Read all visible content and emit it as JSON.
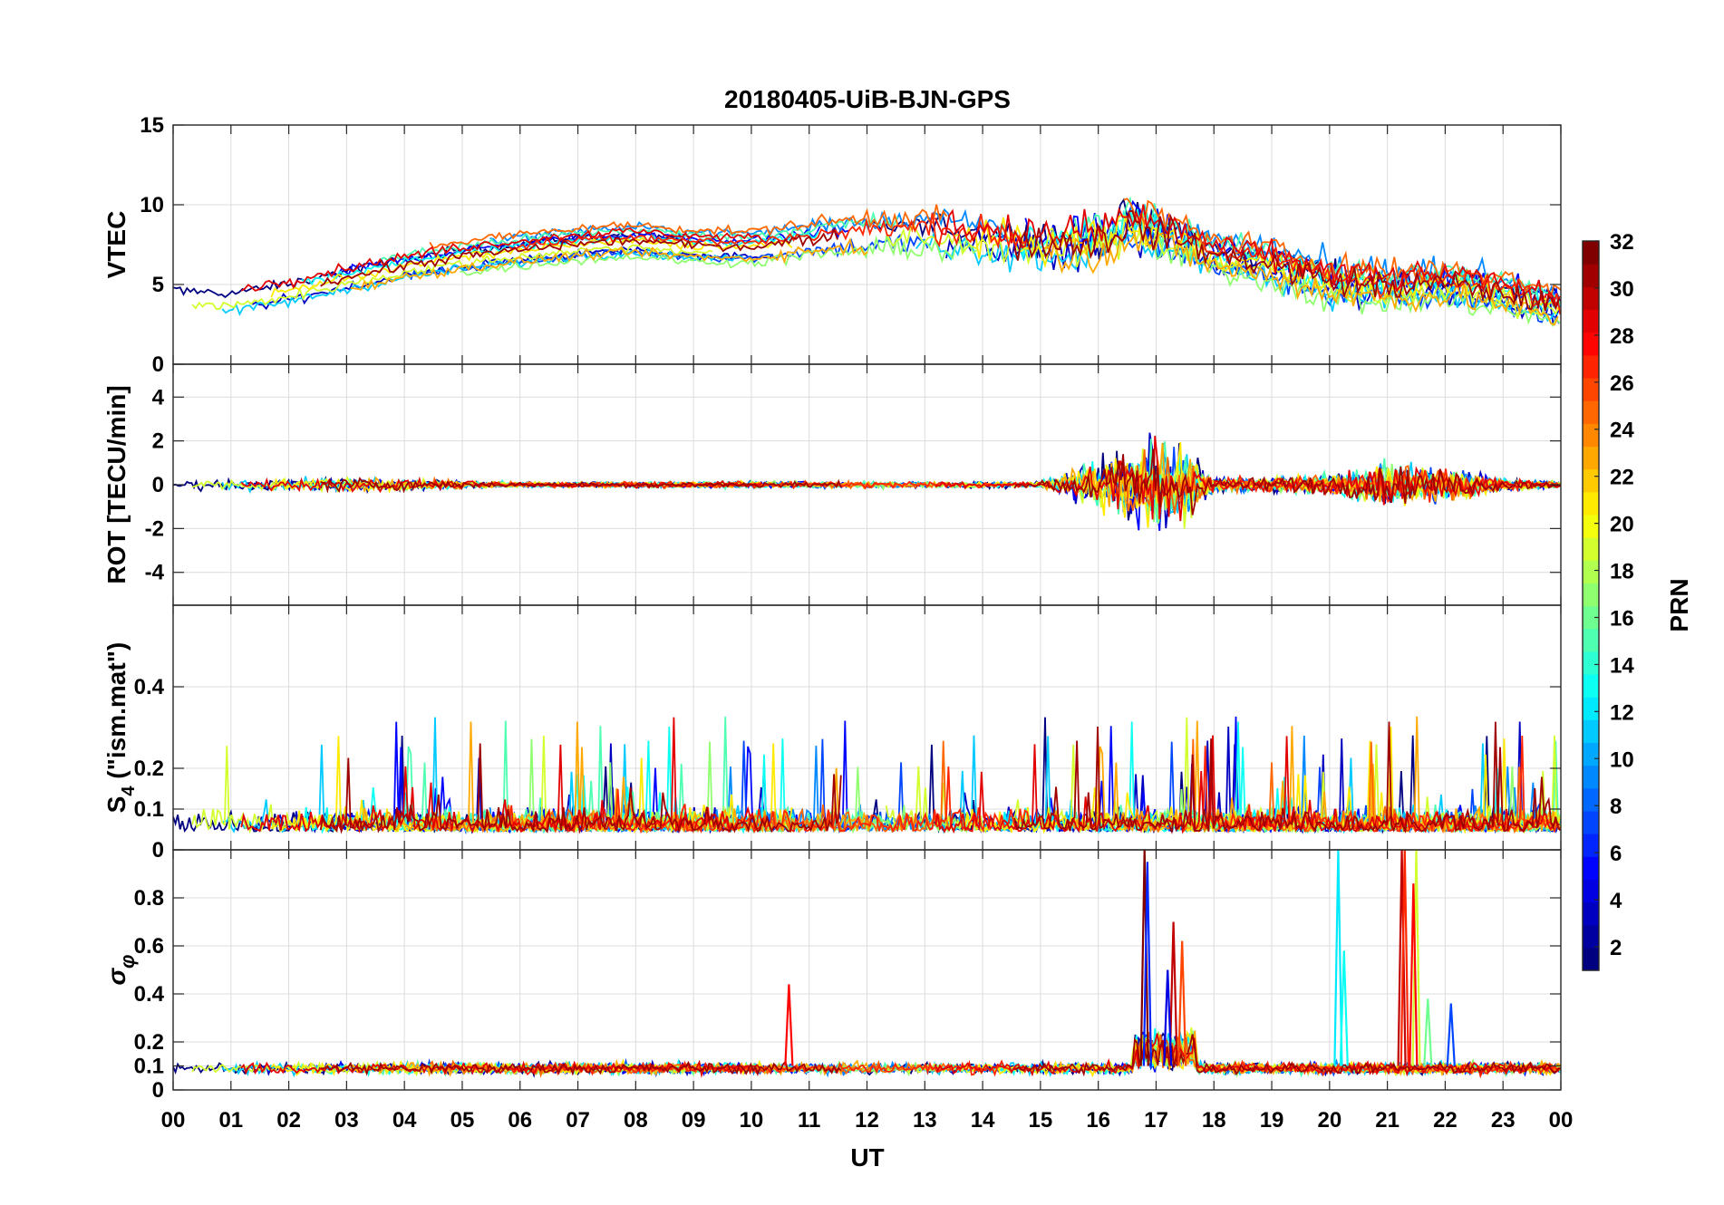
{
  "chart_data": {
    "type": "line",
    "title": "20180405-UiB-BJN-GPS",
    "xlabel": "UT",
    "x_ticks": [
      "00",
      "01",
      "02",
      "03",
      "04",
      "05",
      "06",
      "07",
      "08",
      "09",
      "10",
      "11",
      "12",
      "13",
      "14",
      "15",
      "16",
      "17",
      "18",
      "19",
      "20",
      "21",
      "22",
      "23",
      "00"
    ],
    "xlim": [
      0,
      24
    ],
    "panels": [
      {
        "name": "vtec",
        "ylabel": "VTEC",
        "ylim": [
          0,
          15
        ],
        "y_ticks": [
          {
            "v": 0,
            "label": "0"
          },
          {
            "v": 5,
            "label": "5"
          },
          {
            "v": 10,
            "label": "10"
          },
          {
            "v": 15,
            "label": "15"
          }
        ],
        "trend": [
          [
            0,
            4.3
          ],
          [
            1,
            4.1
          ],
          [
            2,
            4.7
          ],
          [
            3,
            5.5
          ],
          [
            4,
            6.2
          ],
          [
            5,
            6.8
          ],
          [
            6,
            7.2
          ],
          [
            7,
            7.6
          ],
          [
            8,
            7.8
          ],
          [
            9,
            7.5
          ],
          [
            10,
            7.4
          ],
          [
            11,
            7.9
          ],
          [
            12,
            8.2
          ],
          [
            13,
            8.4
          ],
          [
            14,
            8.0
          ],
          [
            15,
            7.6
          ],
          [
            16,
            7.8
          ],
          [
            16.5,
            8.8
          ],
          [
            17,
            8.3
          ],
          [
            17.5,
            7.8
          ],
          [
            18,
            6.9
          ],
          [
            19,
            6.3
          ],
          [
            20,
            5.3
          ],
          [
            21,
            4.9
          ],
          [
            22,
            5.1
          ],
          [
            23,
            4.5
          ],
          [
            24,
            3.6
          ]
        ],
        "noise": [
          [
            0,
            0.4
          ],
          [
            10,
            0.3
          ],
          [
            16,
            1.6
          ],
          [
            17.6,
            1.2
          ],
          [
            18,
            0.8
          ],
          [
            20,
            1.2
          ],
          [
            24,
            0.8
          ]
        ]
      },
      {
        "name": "rot",
        "ylabel": "ROT [TECU/min]",
        "ylim": [
          -5.5,
          5.5
        ],
        "y_ticks": [
          {
            "v": -4,
            "label": "-4"
          },
          {
            "v": -2,
            "label": "-2"
          },
          {
            "v": 0,
            "label": "0"
          },
          {
            "v": 2,
            "label": "2"
          },
          {
            "v": 4,
            "label": "4"
          }
        ],
        "trend": [
          [
            0,
            0
          ],
          [
            24,
            0
          ]
        ],
        "noise": [
          [
            0,
            0.25
          ],
          [
            3,
            0.35
          ],
          [
            6,
            0.12
          ],
          [
            13,
            0.18
          ],
          [
            15,
            0.15
          ],
          [
            15.7,
            0.9
          ],
          [
            16.5,
            1.7
          ],
          [
            17,
            2.4
          ],
          [
            17.6,
            1.6
          ],
          [
            18,
            0.3
          ],
          [
            20,
            0.5
          ],
          [
            21,
            1.0
          ],
          [
            22,
            0.8
          ],
          [
            23,
            0.3
          ],
          [
            24,
            0.15
          ]
        ]
      },
      {
        "name": "s4",
        "ylabel": "S4 (\"ism.mat\")",
        "ylim": [
          0,
          0.6
        ],
        "y_ticks": [
          {
            "v": 0,
            "label": "0"
          },
          {
            "v": 0.1,
            "label": "0.1"
          },
          {
            "v": 0.2,
            "label": "0.2"
          },
          {
            "v": 0.4,
            "label": "0.4"
          }
        ],
        "trend": [
          [
            0,
            0.06
          ],
          [
            24,
            0.06
          ]
        ],
        "noise": [
          [
            0,
            0.05
          ],
          [
            24,
            0.05
          ]
        ]
      },
      {
        "name": "sigma_phi",
        "ylabel": "σφ",
        "ylim": [
          0,
          1
        ],
        "y_ticks": [
          {
            "v": 0,
            "label": "0"
          },
          {
            "v": 0.1,
            "label": "0.1"
          },
          {
            "v": 0.2,
            "label": "0.2"
          },
          {
            "v": 0.4,
            "label": "0.4"
          },
          {
            "v": 0.6,
            "label": "0.6"
          },
          {
            "v": 0.8,
            "label": "0.8"
          }
        ],
        "trend": [
          [
            0,
            0.1
          ],
          [
            24,
            0.1
          ]
        ],
        "noise": [
          [
            0,
            0.03
          ],
          [
            24,
            0.03
          ]
        ],
        "spikes": [
          [
            10.65,
            0.44
          ],
          [
            16.8,
            1.0
          ],
          [
            16.85,
            0.95
          ],
          [
            17.3,
            0.7
          ],
          [
            17.45,
            0.62
          ],
          [
            17.2,
            0.5
          ],
          [
            20.15,
            1.0
          ],
          [
            20.25,
            0.58
          ],
          [
            21.25,
            1.0
          ],
          [
            21.3,
            1.0
          ],
          [
            21.5,
            1.0
          ],
          [
            21.45,
            0.86
          ],
          [
            21.7,
            0.38
          ],
          [
            22.1,
            0.36
          ]
        ]
      }
    ],
    "colorbar": {
      "label": "PRN",
      "range": [
        1,
        32
      ],
      "ticks": [
        {
          "v": 2,
          "label": "2"
        },
        {
          "v": 4,
          "label": "4"
        },
        {
          "v": 6,
          "label": "6"
        },
        {
          "v": 8,
          "label": "8"
        },
        {
          "v": 10,
          "label": "10"
        },
        {
          "v": 12,
          "label": "12"
        },
        {
          "v": 14,
          "label": "14"
        },
        {
          "v": 16,
          "label": "16"
        },
        {
          "v": 18,
          "label": "18"
        },
        {
          "v": 20,
          "label": "20"
        },
        {
          "v": 22,
          "label": "22"
        },
        {
          "v": 24,
          "label": "24"
        },
        {
          "v": 26,
          "label": "26"
        },
        {
          "v": 28,
          "label": "28"
        },
        {
          "v": 30,
          "label": "30"
        },
        {
          "v": 32,
          "label": "32"
        }
      ],
      "colormap": "jet"
    }
  }
}
